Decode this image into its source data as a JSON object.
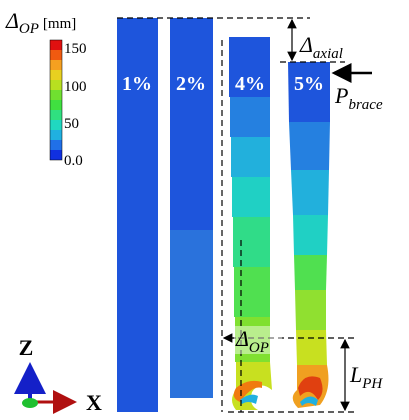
{
  "legend": {
    "symbol": "Δ",
    "subscript": "OP",
    "unit": "[mm]",
    "ticks": [
      "150",
      "100",
      "50",
      "0.0"
    ]
  },
  "columns": [
    {
      "label": "1%"
    },
    {
      "label": "2%"
    },
    {
      "label": "4%"
    },
    {
      "label": "5%"
    }
  ],
  "annotations": {
    "delta_axial": {
      "symbol": "Δ",
      "subscript": "axial"
    },
    "p_brace": {
      "symbol": "P",
      "subscript": "brace"
    },
    "delta_op": {
      "symbol": "Δ",
      "subscript": "OP"
    },
    "l_ph": {
      "symbol": "L",
      "subscript": "PH"
    }
  },
  "axes": {
    "z": "Z",
    "x": "X"
  }
}
